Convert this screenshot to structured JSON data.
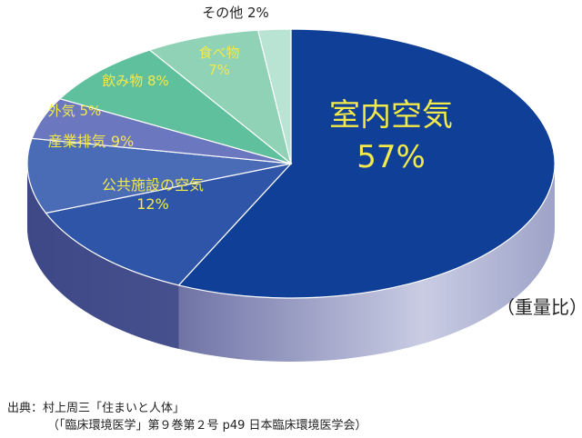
{
  "chart_data": {
    "type": "pie",
    "style": "3d",
    "unit_note": "（重量比）",
    "slices": [
      {
        "label": "室内空気",
        "value": 57,
        "value_label": "57%",
        "color": "#0f3f96"
      },
      {
        "label": "公共施設の空気",
        "value": 12,
        "value_label": "12%",
        "color": "#2f55a8"
      },
      {
        "label": "産業排気",
        "value": 9,
        "value_label": "9%",
        "color": "#4a6bb6"
      },
      {
        "label": "外気",
        "value": 5,
        "value_label": "5%",
        "color": "#6b78c0"
      },
      {
        "label": "飲み物",
        "value": 8,
        "value_label": "8%",
        "color": "#5fc09e"
      },
      {
        "label": "食べ物",
        "value": 7,
        "value_label": "7%",
        "color": "#8fd2b6"
      },
      {
        "label": "その他",
        "value": 2,
        "value_label": "2%",
        "color": "#b9e3d3"
      }
    ]
  },
  "source": {
    "line1": "出典：村上周三「住まいと人体」",
    "line2": "（「臨床環境医学」第９巻第２号 p49 日本臨床環境医学会）"
  }
}
